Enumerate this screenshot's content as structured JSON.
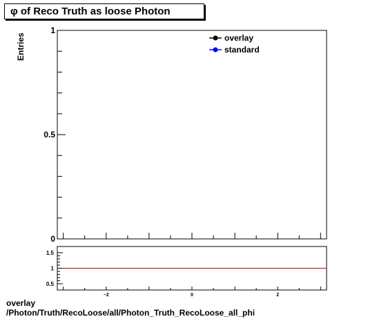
{
  "title": "φ of Reco Truth as loose Photon",
  "footer": {
    "line1": "overlay",
    "line2": "/Photon/Truth/RecoLoose/all/Photon_Truth_RecoLoose_all_phi"
  },
  "colors": {
    "overlay": "#000000",
    "standard": "#0000ff",
    "ratio_line": "#cc0000"
  },
  "chart_data": [
    {
      "type": "line",
      "ylabel": "Entries",
      "xlabel": "",
      "xlim": [
        -3.14,
        3.14
      ],
      "ylim": [
        0,
        1
      ],
      "y_ticks": [
        0,
        0.5,
        1
      ],
      "y_tick_labels": [
        "0",
        "0.5",
        "1"
      ],
      "legend": {
        "placement": "top-right",
        "entries": [
          "overlay",
          "standard"
        ]
      },
      "series": [
        {
          "name": "overlay",
          "x": [],
          "values": []
        },
        {
          "name": "standard",
          "x": [],
          "values": []
        }
      ]
    },
    {
      "type": "line",
      "xlim": [
        -3.14,
        3.14
      ],
      "ylim": [
        0.3,
        1.7
      ],
      "x_ticks": [
        -2,
        0,
        2
      ],
      "x_tick_labels": [
        "−2",
        "0",
        "2"
      ],
      "y_ticks": [
        0.5,
        1,
        1.5
      ],
      "y_tick_labels": [
        "0.5",
        "1",
        "1.5"
      ],
      "reference_line": 1,
      "series": []
    }
  ]
}
